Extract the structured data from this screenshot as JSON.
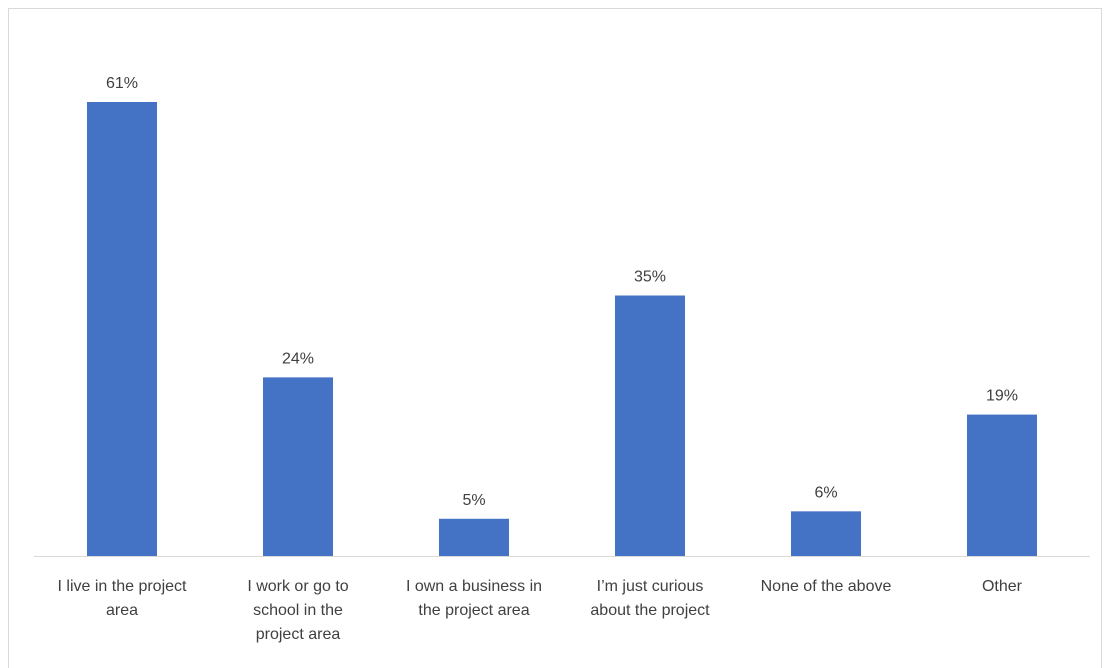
{
  "chart_data": {
    "type": "bar",
    "categories": [
      [
        "I live in the project",
        "area"
      ],
      [
        "I work or go to",
        "school in the",
        "project area"
      ],
      [
        "I own a business in",
        "the project area"
      ],
      [
        "I’m just curious",
        "about the project"
      ],
      [
        "None of the above"
      ],
      [
        "Other"
      ]
    ],
    "values": [
      61,
      24,
      5,
      35,
      6,
      19
    ],
    "data_labels": [
      "61%",
      "24%",
      "5%",
      "35%",
      "6%",
      "19%"
    ],
    "value_unit": "%",
    "ylim": [
      0,
      61
    ],
    "grid": false,
    "legend": "none",
    "colors": {
      "bar": "#4472c4",
      "axis": "#d9d9d9",
      "text": "#404040"
    }
  }
}
